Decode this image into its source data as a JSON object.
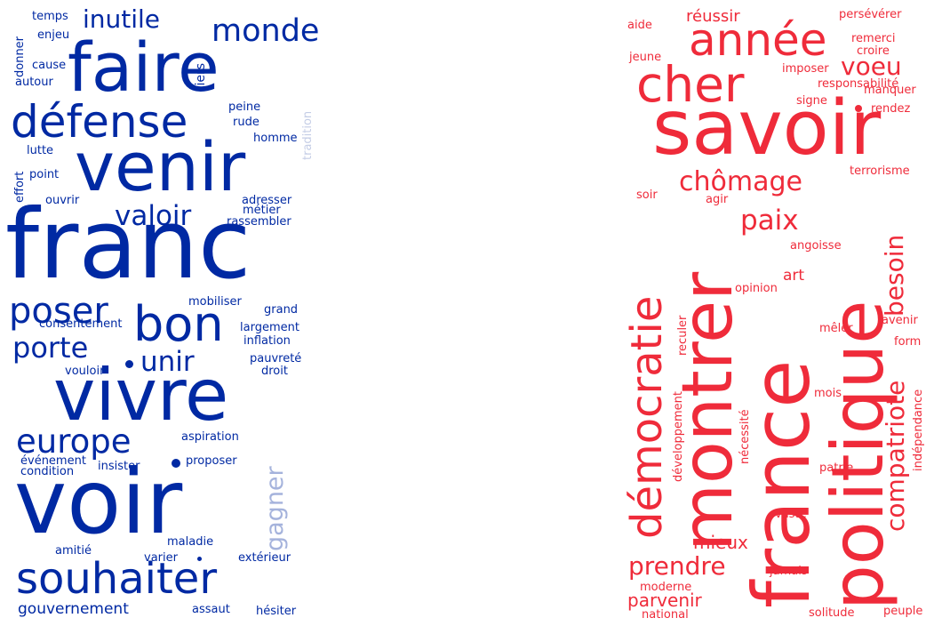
{
  "colors": {
    "left": "#0029a3",
    "left_faded": "#c4cde6",
    "left_mid": "#a5b3dc",
    "right": "#ef2b3a"
  },
  "left_cloud": {
    "words": [
      "temps",
      "enjeu",
      "donner",
      "cause",
      "autour",
      "inutile",
      "monde",
      "faire",
      "tiers",
      "défense",
      "peine",
      "rude",
      "homme",
      "tradition",
      "venir",
      "lutte",
      "effort",
      "point",
      "ouvrir",
      "adresser",
      "métier",
      "rassembler",
      "valoir",
      "franc",
      "poser",
      "mobiliser",
      "grand",
      "consentement",
      "bon",
      "largement",
      "inflation",
      "porte",
      "pauvreté",
      "unir",
      "vouloir",
      "droit",
      "vivre",
      "europe",
      "aspiration",
      "événement",
      "condition",
      "insister",
      "proposer",
      "gagner",
      "voir",
      "maladie",
      "amitié",
      "varier",
      "extérieur",
      "souhaiter",
      "gouvernement",
      "assaut",
      "hésiter"
    ]
  },
  "right_cloud": {
    "words": [
      "aide",
      "réussir",
      "persévérer",
      "année",
      "remerci",
      "croire",
      "jeune",
      "imposer",
      "responsabilité",
      "cher",
      "voeu",
      "manquer",
      "signe",
      "rendez",
      "savoir",
      "terrorisme",
      "chômage",
      "soir",
      "agir",
      "paix",
      "besoin",
      "démocratie",
      "montrer",
      "angoisse",
      "france",
      "politique",
      "art",
      "opinion",
      "reculer",
      "mêler",
      "avenir",
      "form",
      "compatriote",
      "indépendance",
      "développement",
      "nécessité",
      "mois",
      "patrie",
      "mieux",
      "vaste",
      "prendre",
      "jamais",
      "moderne",
      "parvenir",
      "national",
      "solitude",
      "peuple"
    ]
  }
}
